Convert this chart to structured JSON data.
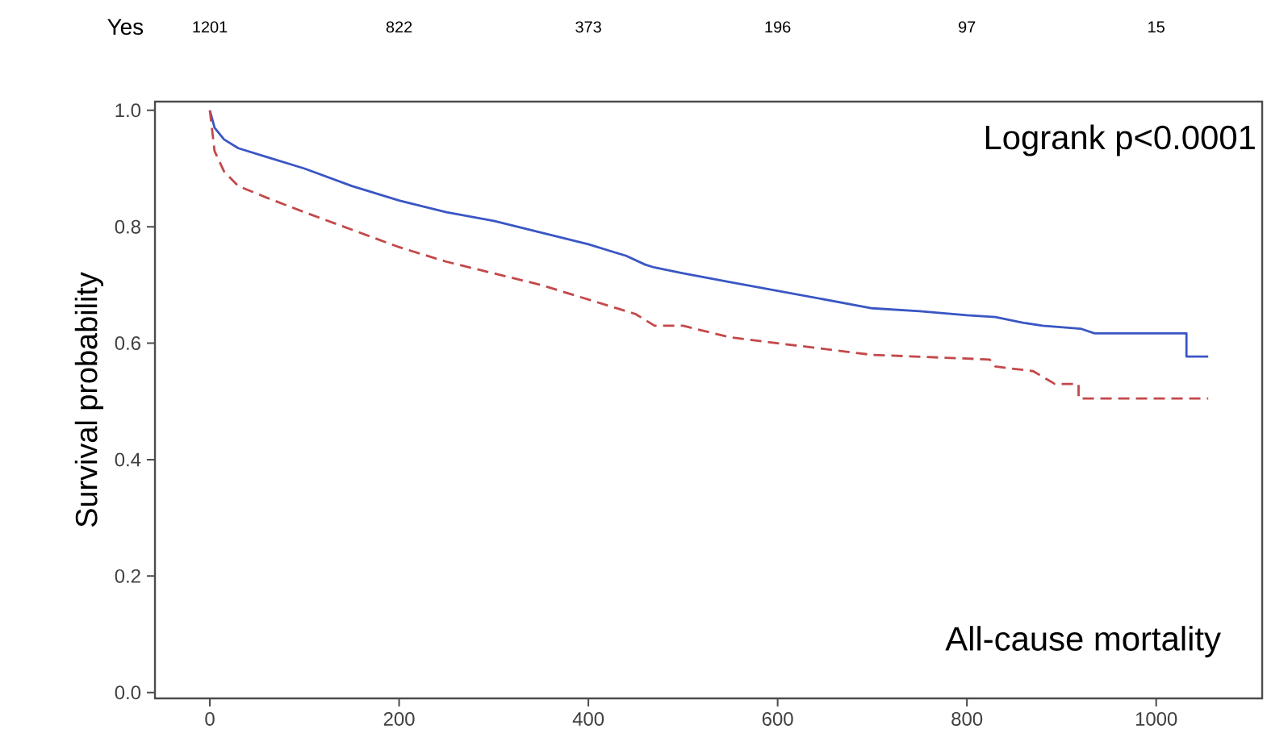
{
  "chart_data": {
    "type": "line",
    "ylabel": "Survival probability",
    "annotations": [
      "Logrank p<0.0001",
      "All-cause mortality",
      "Yes",
      "1201",
      "822",
      "373",
      "196",
      "97",
      "15"
    ],
    "xlim": [
      -58,
      1112
    ],
    "ylim": [
      -0.01,
      1.015
    ],
    "xticks": [
      0,
      200,
      400,
      600,
      800,
      1000
    ],
    "yticks": [
      {
        "value": 0,
        "label": "0.0"
      },
      {
        "value": 0.2,
        "label": "0.2"
      },
      {
        "value": 0.4,
        "label": "0.4"
      },
      {
        "value": 0.6,
        "label": "0.6"
      },
      {
        "value": 0.8,
        "label": "0.8"
      },
      {
        "value": 1,
        "label": "1.0"
      }
    ],
    "grid": false,
    "series": [
      {
        "color": "#3a56c4",
        "line_style": "solid",
        "x": [
          0,
          5,
          15,
          30,
          60,
          100,
          150,
          200,
          250,
          300,
          350,
          400,
          440,
          460,
          470,
          500,
          550,
          600,
          650,
          700,
          750,
          800,
          830,
          860,
          880,
          920,
          935,
          1032,
          1032,
          1055
        ],
        "values": [
          1.0,
          0.97,
          0.95,
          0.935,
          0.92,
          0.9,
          0.87,
          0.845,
          0.825,
          0.81,
          0.79,
          0.77,
          0.75,
          0.735,
          0.73,
          0.72,
          0.705,
          0.69,
          0.675,
          0.66,
          0.655,
          0.648,
          0.645,
          0.635,
          0.63,
          0.625,
          0.617,
          0.617,
          0.577,
          0.577
        ]
      },
      {
        "color": "#c4484a",
        "line_style": "dashed",
        "x": [
          0,
          5,
          15,
          30,
          60,
          100,
          150,
          200,
          250,
          300,
          350,
          400,
          450,
          470,
          500,
          550,
          600,
          650,
          700,
          824,
          830,
          870,
          893,
          918,
          918,
          1055
        ],
        "values": [
          1.0,
          0.93,
          0.895,
          0.87,
          0.85,
          0.825,
          0.795,
          0.765,
          0.74,
          0.72,
          0.7,
          0.675,
          0.65,
          0.63,
          0.63,
          0.61,
          0.6,
          0.59,
          0.58,
          0.572,
          0.56,
          0.552,
          0.53,
          0.53,
          0.505,
          0.505
        ]
      }
    ]
  }
}
